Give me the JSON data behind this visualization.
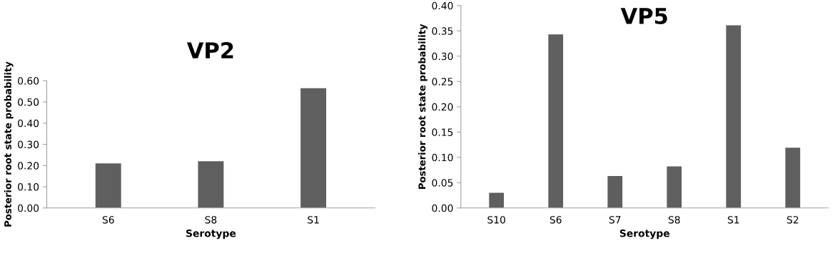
{
  "chart_data": [
    {
      "type": "bar",
      "title": "VP2",
      "xlabel": "Serotype",
      "ylabel": "Posterior root state probability",
      "categories": [
        "S6",
        "S8",
        "S1"
      ],
      "values": [
        0.21,
        0.22,
        0.565
      ],
      "color": "#5f5f5f",
      "ylim": [
        0,
        0.6
      ],
      "yticks": [
        {
          "value": 0,
          "label": "0.00"
        },
        {
          "value": 0.1,
          "label": "0.10"
        },
        {
          "value": 0.2,
          "label": "0.20"
        },
        {
          "value": 0.3,
          "label": "0.30"
        },
        {
          "value": 0.4,
          "label": "0.40"
        },
        {
          "value": 0.5,
          "label": "0.50"
        },
        {
          "value": 0.6,
          "label": "0.60"
        }
      ],
      "grid": false,
      "legend": false
    },
    {
      "type": "bar",
      "title": "VP5",
      "xlabel": "Serotype",
      "ylabel": "Posterior root state probability",
      "categories": [
        "S10",
        "S6",
        "S7",
        "S8",
        "S1",
        "S2"
      ],
      "values": [
        0.03,
        0.343,
        0.063,
        0.082,
        0.361,
        0.119
      ],
      "color": "#5f5f5f",
      "ylim": [
        0,
        0.4
      ],
      "yticks": [
        {
          "value": 0,
          "label": "0.00"
        },
        {
          "value": 0.05,
          "label": "0.05"
        },
        {
          "value": 0.1,
          "label": "0.10"
        },
        {
          "value": 0.15,
          "label": "0.15"
        },
        {
          "value": 0.2,
          "label": "0.20"
        },
        {
          "value": 0.25,
          "label": "0.25"
        },
        {
          "value": 0.3,
          "label": "0.30"
        },
        {
          "value": 0.35,
          "label": "0.35"
        },
        {
          "value": 0.4,
          "label": "0.40"
        }
      ],
      "grid": false,
      "legend": false
    }
  ]
}
